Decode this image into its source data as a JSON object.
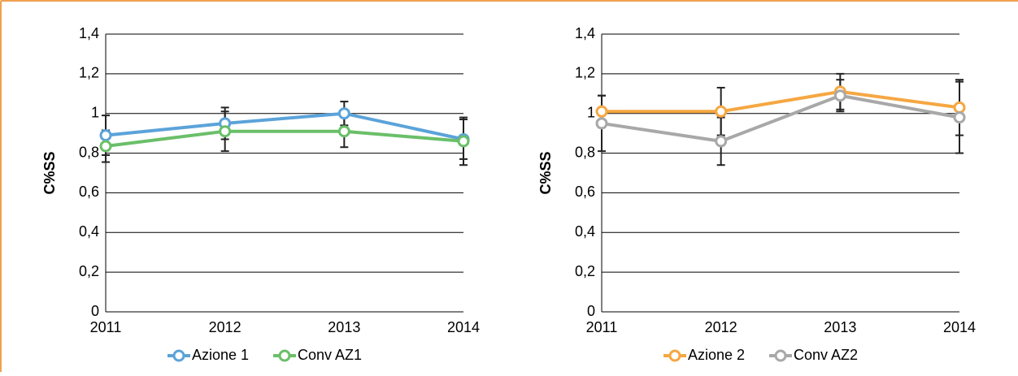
{
  "chart_data": [
    {
      "type": "line",
      "ylabel": "C%SS",
      "categories": [
        "2011",
        "2012",
        "2013",
        "2014"
      ],
      "series": [
        {
          "name": "Azione 1",
          "color": "#5ba3d9",
          "values": [
            0.89,
            0.95,
            1.0,
            0.87
          ],
          "errors": [
            0.1,
            0.08,
            0.06,
            0.1
          ]
        },
        {
          "name": "Conv AZ1",
          "color": "#6abf69",
          "values": [
            0.835,
            0.91,
            0.91,
            0.86
          ],
          "errors": [
            0.08,
            0.1,
            0.08,
            0.12
          ]
        }
      ],
      "ylim": [
        0,
        1.4
      ],
      "yticks": [
        0,
        {
          "value": 0.2,
          "label": "0,2"
        },
        {
          "value": 0.4,
          "label": "0,4"
        },
        {
          "value": 0.6,
          "label": "0,6"
        },
        {
          "value": 0.8,
          "label": "0,8"
        },
        1,
        {
          "value": 1.2,
          "label": "1,2"
        },
        {
          "value": 1.4,
          "label": "1,4"
        }
      ],
      "grid": true,
      "legend": "bottom"
    },
    {
      "type": "line",
      "ylabel": "C%SS",
      "categories": [
        "2011",
        "2012",
        "2013",
        "2014"
      ],
      "series": [
        {
          "name": "Azione 2",
          "color": "#f5a742",
          "values": [
            1.01,
            1.01,
            1.11,
            1.03
          ],
          "errors": [
            0.08,
            0.12,
            0.09,
            0.14
          ]
        },
        {
          "name": "Conv AZ2",
          "color": "#a8a8a8",
          "values": [
            0.95,
            0.86,
            1.09,
            0.98
          ],
          "errors": [
            0.14,
            0.12,
            0.08,
            0.18
          ]
        }
      ],
      "ylim": [
        0,
        1.4
      ],
      "yticks": [
        0,
        {
          "value": 0.2,
          "label": "0,2"
        },
        {
          "value": 0.4,
          "label": "0,4"
        },
        {
          "value": 0.6,
          "label": "0,6"
        },
        {
          "value": 0.8,
          "label": "0,8"
        },
        1,
        {
          "value": 1.2,
          "label": "1,2"
        },
        {
          "value": 1.4,
          "label": "1,4"
        }
      ],
      "grid": true,
      "legend": "bottom"
    }
  ]
}
